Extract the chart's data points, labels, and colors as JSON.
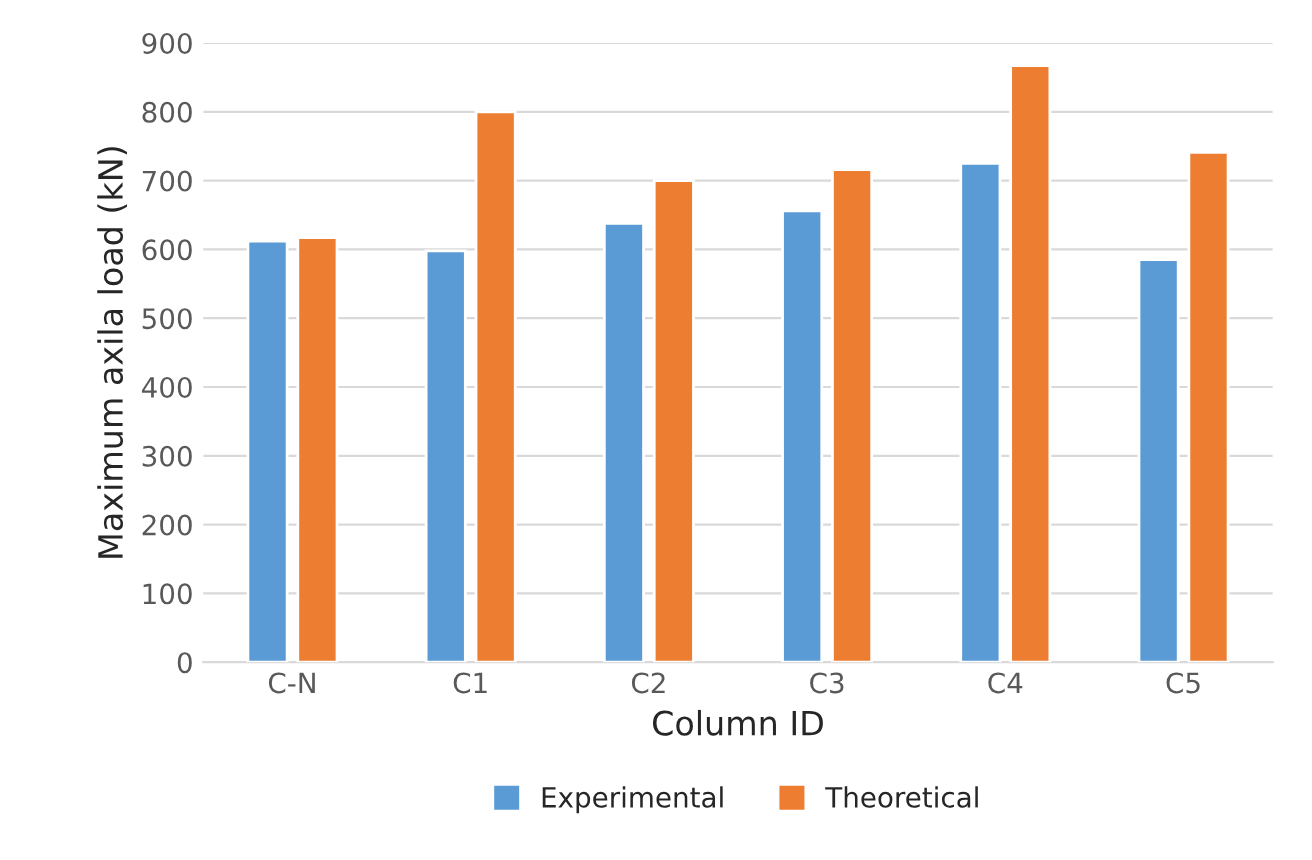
{
  "chart_data": {
    "type": "bar",
    "xlabel": "Column ID",
    "ylabel": "Maximum axila load (kN)",
    "categories": [
      "C-N",
      "C1",
      "C2",
      "C3",
      "C4",
      "C5"
    ],
    "series": [
      {
        "name": "Experimental",
        "color": "#5b9bd5",
        "values": [
          612,
          598,
          638,
          656,
          725,
          585
        ]
      },
      {
        "name": "Theoretical",
        "color": "#ed7d31",
        "values": [
          617,
          800,
          700,
          716,
          867,
          741
        ]
      }
    ],
    "ylim": [
      0,
      900
    ],
    "yticks": [
      0,
      100,
      200,
      300,
      400,
      500,
      600,
      700,
      800,
      900
    ],
    "grid": "y",
    "legend": "bottom"
  }
}
